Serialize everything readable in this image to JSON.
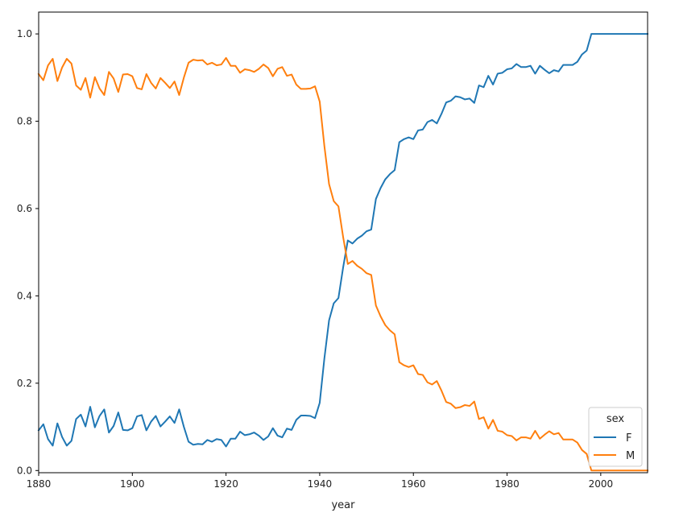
{
  "chart_data": {
    "type": "line",
    "title": "",
    "xlabel": "year",
    "ylabel": "",
    "xlim": [
      1880,
      2010
    ],
    "ylim": [
      -0.005,
      1.05
    ],
    "x_ticks": [
      1880,
      1900,
      1920,
      1940,
      1960,
      1980,
      2000
    ],
    "x_tick_labels": [
      "1880",
      "1900",
      "1920",
      "1940",
      "1960",
      "1980",
      "2000"
    ],
    "y_ticks": [
      0.0,
      0.2,
      0.4,
      0.6,
      0.8,
      1.0
    ],
    "y_tick_labels": [
      "0.0",
      "0.2",
      "0.4",
      "0.6",
      "0.8",
      "1.0"
    ],
    "grid": false,
    "legend": {
      "title": "sex",
      "placement": "lower-right"
    },
    "x": [
      1880,
      1881,
      1882,
      1883,
      1884,
      1885,
      1886,
      1887,
      1888,
      1889,
      1890,
      1891,
      1892,
      1893,
      1894,
      1895,
      1896,
      1897,
      1898,
      1899,
      1900,
      1901,
      1902,
      1903,
      1904,
      1905,
      1906,
      1907,
      1908,
      1909,
      1910,
      1911,
      1912,
      1913,
      1914,
      1915,
      1916,
      1917,
      1918,
      1919,
      1920,
      1921,
      1922,
      1923,
      1924,
      1925,
      1926,
      1927,
      1928,
      1929,
      1930,
      1931,
      1932,
      1933,
      1934,
      1935,
      1936,
      1937,
      1938,
      1939,
      1940,
      1941,
      1942,
      1943,
      1944,
      1945,
      1946,
      1947,
      1948,
      1949,
      1950,
      1951,
      1952,
      1953,
      1954,
      1955,
      1956,
      1957,
      1958,
      1959,
      1960,
      1961,
      1962,
      1963,
      1964,
      1965,
      1966,
      1967,
      1968,
      1969,
      1970,
      1971,
      1972,
      1973,
      1974,
      1975,
      1976,
      1977,
      1978,
      1979,
      1980,
      1981,
      1982,
      1983,
      1984,
      1985,
      1986,
      1987,
      1988,
      1989,
      1990,
      1991,
      1992,
      1993,
      1994,
      1995,
      1996,
      1997,
      1998,
      1999,
      2000,
      2001,
      2002,
      2003,
      2004,
      2005,
      2006,
      2007,
      2008,
      2009,
      2010
    ],
    "series": [
      {
        "name": "F",
        "color": "#1f77b4",
        "values": [
          0.092,
          0.106,
          0.072,
          0.057,
          0.108,
          0.077,
          0.057,
          0.068,
          0.118,
          0.128,
          0.101,
          0.146,
          0.099,
          0.125,
          0.14,
          0.087,
          0.102,
          0.133,
          0.093,
          0.092,
          0.097,
          0.124,
          0.127,
          0.092,
          0.112,
          0.125,
          0.101,
          0.112,
          0.124,
          0.109,
          0.14,
          0.1,
          0.066,
          0.059,
          0.061,
          0.06,
          0.07,
          0.066,
          0.072,
          0.07,
          0.055,
          0.073,
          0.073,
          0.089,
          0.081,
          0.083,
          0.087,
          0.08,
          0.07,
          0.078,
          0.097,
          0.08,
          0.076,
          0.096,
          0.093,
          0.116,
          0.126,
          0.126,
          0.125,
          0.12,
          0.155,
          0.257,
          0.344,
          0.383,
          0.395,
          0.465,
          0.527,
          0.52,
          0.531,
          0.538,
          0.548,
          0.552,
          0.622,
          0.647,
          0.667,
          0.679,
          0.688,
          0.752,
          0.759,
          0.763,
          0.759,
          0.779,
          0.781,
          0.798,
          0.803,
          0.795,
          0.817,
          0.843,
          0.847,
          0.857,
          0.855,
          0.85,
          0.852,
          0.842,
          0.882,
          0.878,
          0.904,
          0.884,
          0.909,
          0.911,
          0.919,
          0.921,
          0.931,
          0.924,
          0.924,
          0.927,
          0.909,
          0.927,
          0.918,
          0.91,
          0.917,
          0.914,
          0.929,
          0.929,
          0.929,
          0.936,
          0.953,
          0.962,
          1.0,
          1.0,
          1.0,
          1.0,
          1.0,
          1.0,
          1.0,
          1.0,
          1.0,
          1.0,
          1.0,
          1.0,
          1.0
        ]
      },
      {
        "name": "M",
        "color": "#ff7f0e",
        "values": [
          0.908,
          0.894,
          0.928,
          0.943,
          0.892,
          0.923,
          0.943,
          0.932,
          0.882,
          0.872,
          0.899,
          0.854,
          0.901,
          0.875,
          0.86,
          0.913,
          0.898,
          0.867,
          0.907,
          0.908,
          0.903,
          0.876,
          0.873,
          0.908,
          0.888,
          0.875,
          0.899,
          0.888,
          0.876,
          0.891,
          0.86,
          0.9,
          0.934,
          0.941,
          0.939,
          0.94,
          0.93,
          0.934,
          0.928,
          0.93,
          0.945,
          0.927,
          0.927,
          0.911,
          0.919,
          0.917,
          0.913,
          0.92,
          0.93,
          0.922,
          0.903,
          0.92,
          0.924,
          0.904,
          0.907,
          0.884,
          0.874,
          0.874,
          0.875,
          0.88,
          0.845,
          0.743,
          0.656,
          0.617,
          0.605,
          0.535,
          0.473,
          0.48,
          0.469,
          0.462,
          0.452,
          0.448,
          0.378,
          0.353,
          0.333,
          0.321,
          0.312,
          0.248,
          0.241,
          0.237,
          0.241,
          0.221,
          0.219,
          0.202,
          0.197,
          0.205,
          0.183,
          0.157,
          0.153,
          0.143,
          0.145,
          0.15,
          0.148,
          0.158,
          0.118,
          0.122,
          0.096,
          0.116,
          0.091,
          0.089,
          0.081,
          0.079,
          0.069,
          0.076,
          0.076,
          0.073,
          0.091,
          0.073,
          0.082,
          0.09,
          0.083,
          0.086,
          0.071,
          0.071,
          0.071,
          0.064,
          0.047,
          0.038,
          0.0,
          0.0,
          0.0,
          0.0,
          0.0,
          0.0,
          0.0,
          0.0,
          0.0,
          0.0,
          0.0,
          0.0,
          0.0
        ]
      }
    ]
  }
}
